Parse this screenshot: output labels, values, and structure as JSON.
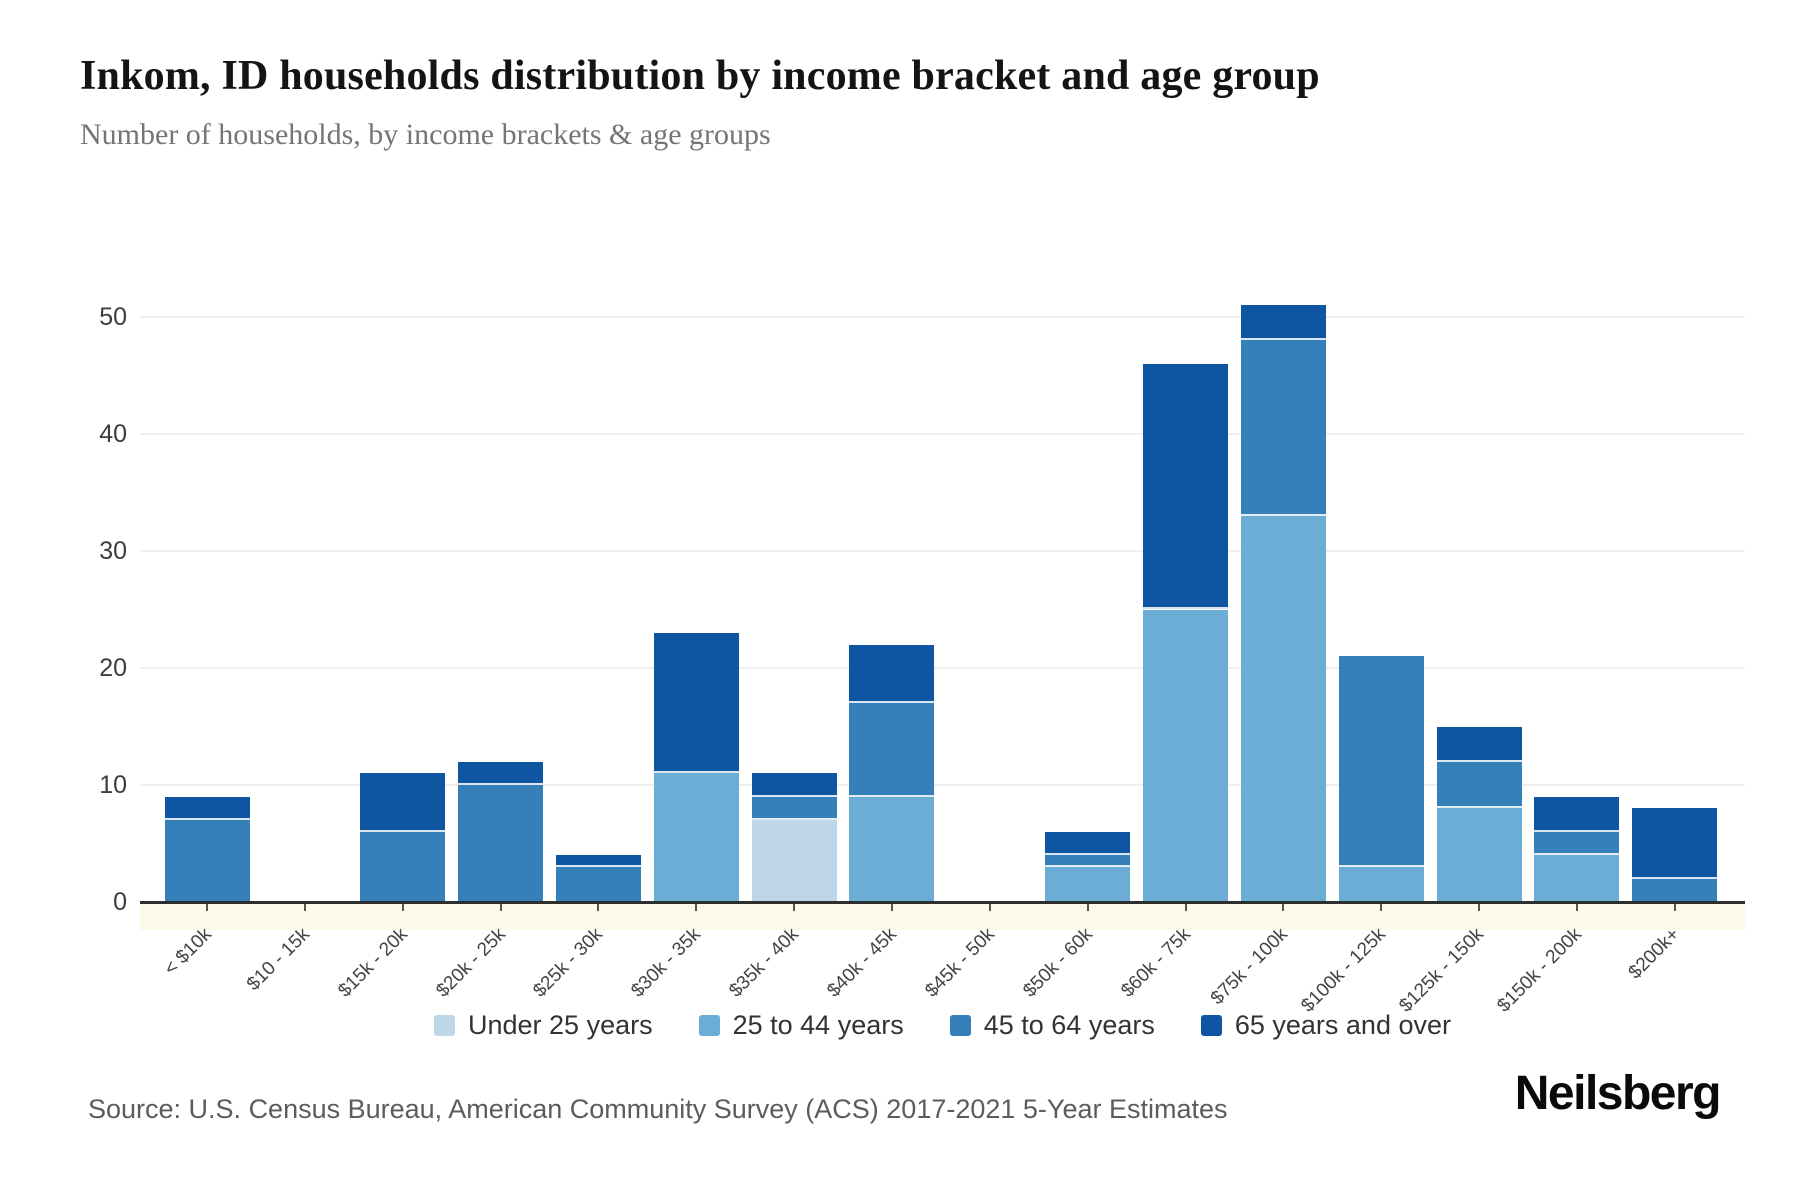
{
  "title": "Inkom, ID households distribution by income bracket and age group",
  "subtitle": "Number of households, by income brackets & age groups",
  "source": "Source: U.S. Census Bureau, American Community Survey (ACS) 2017-2021 5-Year Estimates",
  "brand": "Neilsberg",
  "colors": {
    "under_25": "#bed7e8",
    "25_to_44": "#6cadd5",
    "45_to_64": "#3580b9",
    "65_and_over": "#0f56a2",
    "gridline": "#efefef",
    "axis": "#2e2e2e"
  },
  "chart_data": {
    "type": "bar",
    "stacked": true,
    "title": "Inkom, ID households distribution by income bracket and age group",
    "subtitle": "Number of households, by income brackets & age groups",
    "xlabel": "",
    "ylabel": "Number of households",
    "ylim": [
      0,
      52
    ],
    "yticks": [
      0,
      10,
      20,
      30,
      40,
      50
    ],
    "grid": "horizontal",
    "legend_position": "bottom-center",
    "categories": [
      "< $10k",
      "$10 - 15k",
      "$15k - 20k",
      "$20k - 25k",
      "$25k - 30k",
      "$30k - 35k",
      "$35k - 40k",
      "$40k - 45k",
      "$45k - 50k",
      "$50k - 60k",
      "$60k - 75k",
      "$75k - 100k",
      "$100k - 125k",
      "$125k - 150k",
      "$150k - 200k",
      "$200k+"
    ],
    "series": [
      {
        "name": "Under 25 years",
        "color": "#bed7e8",
        "values": [
          0,
          0,
          0,
          0,
          0,
          0,
          7,
          0,
          0,
          0,
          0,
          0,
          0,
          0,
          0,
          0
        ]
      },
      {
        "name": "25 to 44 years",
        "color": "#6cadd5",
        "values": [
          0,
          0,
          0,
          0,
          0,
          11,
          0,
          9,
          0,
          3,
          25,
          33,
          3,
          8,
          4,
          0
        ]
      },
      {
        "name": "45 to 64 years",
        "color": "#3580b9",
        "values": [
          7,
          0,
          6,
          10,
          3,
          0,
          2,
          8,
          0,
          1,
          0,
          15,
          18,
          4,
          2,
          2
        ]
      },
      {
        "name": "65 years and over",
        "color": "#0f56a2",
        "values": [
          2,
          0,
          5,
          2,
          1,
          12,
          2,
          5,
          0,
          2,
          21,
          3,
          0,
          3,
          3,
          6
        ]
      }
    ],
    "totals": [
      9,
      0,
      11,
      12,
      4,
      23,
      11,
      22,
      0,
      6,
      46,
      51,
      21,
      15,
      9,
      8
    ]
  }
}
